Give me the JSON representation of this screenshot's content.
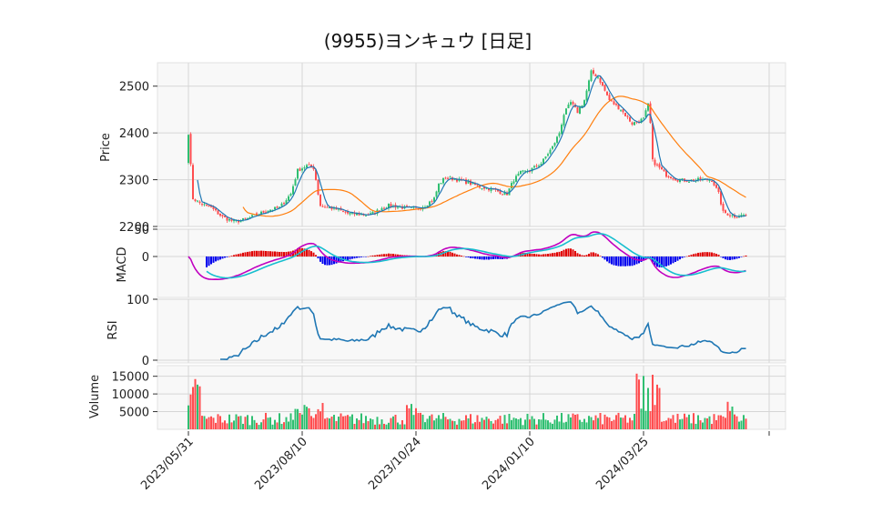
{
  "chart_data": {
    "title": "(9955)ヨンキュウ [日足]",
    "type": "candlestick",
    "colors": {
      "up": "#2fbf71",
      "down": "#ff4d4f",
      "ma_short": "#1f77b4",
      "ma_long": "#ff7f0e",
      "macd": "#c000c0",
      "signal": "#17becf",
      "hist_up": "#e00000",
      "hist_down": "#0000ee",
      "rsi": "#1f77b4",
      "vol_up": "#2fbf71",
      "vol_down": "#ff4d4f"
    },
    "x_ticks": [
      "2023/05/31",
      "2023/08/10",
      "2023/10/24",
      "2024/01/10",
      "2024/03/25"
    ],
    "x_tick_positions_index": [
      0,
      50,
      100,
      150,
      200
    ],
    "n_bars": 246,
    "price": {
      "ylabel": "Price",
      "ylim": [
        2200,
        2550
      ],
      "yticks": [
        2200,
        2300,
        2400,
        2500
      ],
      "close_keypoints": [
        [
          0,
          2400
        ],
        [
          2,
          2260
        ],
        [
          5,
          2250
        ],
        [
          10,
          2240
        ],
        [
          15,
          2220
        ],
        [
          20,
          2210
        ],
        [
          25,
          2215
        ],
        [
          30,
          2225
        ],
        [
          35,
          2235
        ],
        [
          40,
          2240
        ],
        [
          45,
          2270
        ],
        [
          48,
          2320
        ],
        [
          52,
          2330
        ],
        [
          55,
          2325
        ],
        [
          56,
          2300
        ],
        [
          57,
          2270
        ],
        [
          58,
          2245
        ],
        [
          62,
          2240
        ],
        [
          66,
          2235
        ],
        [
          70,
          2228
        ],
        [
          78,
          2225
        ],
        [
          80,
          2226
        ],
        [
          82,
          2230
        ],
        [
          85,
          2240
        ],
        [
          88,
          2245
        ],
        [
          95,
          2240
        ],
        [
          100,
          2238
        ],
        [
          104,
          2245
        ],
        [
          108,
          2260
        ],
        [
          110,
          2290
        ],
        [
          113,
          2305
        ],
        [
          118,
          2300
        ],
        [
          122,
          2295
        ],
        [
          128,
          2285
        ],
        [
          133,
          2280
        ],
        [
          138,
          2272
        ],
        [
          140,
          2270
        ],
        [
          143,
          2300
        ],
        [
          146,
          2315
        ],
        [
          150,
          2320
        ],
        [
          155,
          2335
        ],
        [
          160,
          2370
        ],
        [
          163,
          2400
        ],
        [
          165,
          2440
        ],
        [
          168,
          2465
        ],
        [
          171,
          2445
        ],
        [
          174,
          2470
        ],
        [
          177,
          2530
        ],
        [
          180,
          2520
        ],
        [
          182,
          2500
        ],
        [
          185,
          2470
        ],
        [
          190,
          2450
        ],
        [
          195,
          2420
        ],
        [
          200,
          2430
        ],
        [
          202,
          2460
        ],
        [
          203,
          2420
        ],
        [
          204,
          2340
        ],
        [
          206,
          2330
        ],
        [
          210,
          2310
        ],
        [
          215,
          2300
        ],
        [
          220,
          2298
        ],
        [
          225,
          2300
        ],
        [
          230,
          2300
        ],
        [
          233,
          2270
        ],
        [
          235,
          2230
        ],
        [
          240,
          2222
        ],
        [
          245,
          2225
        ]
      ],
      "ma_short_note": "short moving average",
      "ma_long_note": "long moving average"
    },
    "macd": {
      "ylabel": "MACD",
      "ylim": [
        -75,
        50
      ],
      "yticks": [
        0,
        50
      ]
    },
    "rsi": {
      "ylabel": "RSI",
      "ylim": [
        0,
        100
      ],
      "yticks": [
        0,
        100
      ]
    },
    "volume": {
      "ylabel": "Volume",
      "ylim": [
        0,
        18000
      ],
      "yticks": [
        5000,
        10000,
        15000
      ],
      "tick_labels": [
        "5000",
        "10000",
        "15000"
      ]
    }
  }
}
